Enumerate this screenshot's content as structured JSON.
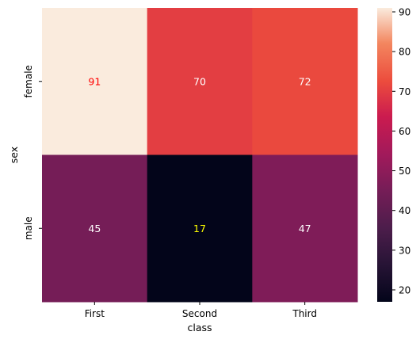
{
  "chart_data": {
    "type": "heatmap",
    "title": "",
    "xlabel": "class",
    "ylabel": "sex",
    "x_categories": [
      "First",
      "Second",
      "Third"
    ],
    "y_categories": [
      "female",
      "male"
    ],
    "values": [
      [
        91,
        70,
        72
      ],
      [
        45,
        17,
        47
      ]
    ],
    "annotation_colors": [
      [
        "#ff0000",
        "#ffffff",
        "#ffffff"
      ],
      [
        "#ffffff",
        "#ffff00",
        "#ffffff"
      ]
    ],
    "colormap": "rocket",
    "colorbar": {
      "min": 17,
      "max": 91,
      "ticks": [
        20,
        30,
        40,
        50,
        60,
        70,
        80,
        90
      ],
      "tick_labels": [
        "20",
        "30",
        "40",
        "50",
        "60",
        "70",
        "80",
        "90"
      ]
    },
    "grid": false,
    "legend": "none"
  }
}
